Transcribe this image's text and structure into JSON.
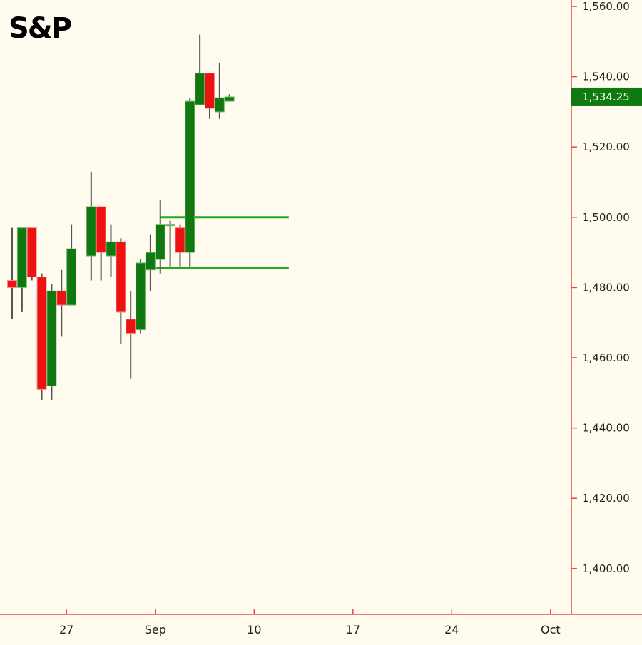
{
  "chart_data": {
    "type": "candlestick",
    "title": "S&P",
    "ylim": [
      1386,
      1562
    ],
    "y_ticks": [
      "1,560.00",
      "1,540.00",
      "1,520.00",
      "1,500.00",
      "1,480.00",
      "1,460.00",
      "1,440.00",
      "1,420.00",
      "1,400.00"
    ],
    "y_tick_values": [
      1560,
      1540,
      1520,
      1500,
      1480,
      1460,
      1440,
      1420,
      1400
    ],
    "x_ticks": [
      "27",
      "Sep",
      "10",
      "17",
      "24",
      "Oct"
    ],
    "x_tick_positions": [
      5.5,
      14.5,
      24.5,
      34.5,
      44.5,
      54.5
    ],
    "last_price": {
      "label": "1,534.25",
      "value": 1534.25
    },
    "colors": {
      "up": "#117711",
      "down": "#ee1111",
      "wick": "#555555",
      "axis": "#ee4444",
      "background": "#fffbee",
      "level_line": "#22aa22",
      "last_price_bg": "#0f7a0f"
    },
    "candles": [
      {
        "o": 1482,
        "h": 1497,
        "l": 1471,
        "c": 1480
      },
      {
        "o": 1480,
        "h": 1497,
        "l": 1473,
        "c": 1497
      },
      {
        "o": 1497,
        "h": 1497,
        "l": 1482,
        "c": 1483
      },
      {
        "o": 1483,
        "h": 1484,
        "l": 1448,
        "c": 1451
      },
      {
        "o": 1452,
        "h": 1481,
        "l": 1448,
        "c": 1479
      },
      {
        "o": 1479,
        "h": 1485,
        "l": 1466,
        "c": 1475
      },
      {
        "o": 1475,
        "h": 1498,
        "l": 1475,
        "c": 1491
      },
      {
        "o": 1489,
        "h": 1513,
        "l": 1482,
        "c": 1503
      },
      {
        "o": 1503,
        "h": 1503,
        "l": 1482,
        "c": 1490
      },
      {
        "o": 1489,
        "h": 1498,
        "l": 1483,
        "c": 1493
      },
      {
        "o": 1493,
        "h": 1494,
        "l": 1464,
        "c": 1473
      },
      {
        "o": 1471,
        "h": 1479,
        "l": 1454,
        "c": 1467
      },
      {
        "o": 1468,
        "h": 1488,
        "l": 1467,
        "c": 1487
      },
      {
        "o": 1485,
        "h": 1495,
        "l": 1479,
        "c": 1490
      },
      {
        "o": 1488,
        "h": 1505,
        "l": 1484,
        "c": 1498
      },
      {
        "o": 1498,
        "h": 1499,
        "l": 1486,
        "c": 1498
      },
      {
        "o": 1497,
        "h": 1498,
        "l": 1486,
        "c": 1490
      },
      {
        "o": 1490,
        "h": 1534,
        "l": 1486,
        "c": 1533
      },
      {
        "o": 1532,
        "h": 1552,
        "l": 1532,
        "c": 1541
      },
      {
        "o": 1541,
        "h": 1541,
        "l": 1528,
        "c": 1531
      },
      {
        "o": 1530,
        "h": 1544,
        "l": 1528,
        "c": 1534
      },
      {
        "o": 1533,
        "h": 1535,
        "l": 1533,
        "c": 1534.25
      }
    ],
    "candle_slots": [
      0,
      1,
      2,
      3,
      4,
      5,
      6,
      8,
      9,
      10,
      11,
      12,
      13,
      14,
      15,
      16,
      17,
      18,
      19,
      20,
      21,
      22
    ],
    "horizontal_lines": [
      {
        "value": 1500,
        "from_slot": 15,
        "to_slot": 28
      },
      {
        "value": 1485.5,
        "from_slot": 13.5,
        "to_slot": 28
      }
    ]
  }
}
